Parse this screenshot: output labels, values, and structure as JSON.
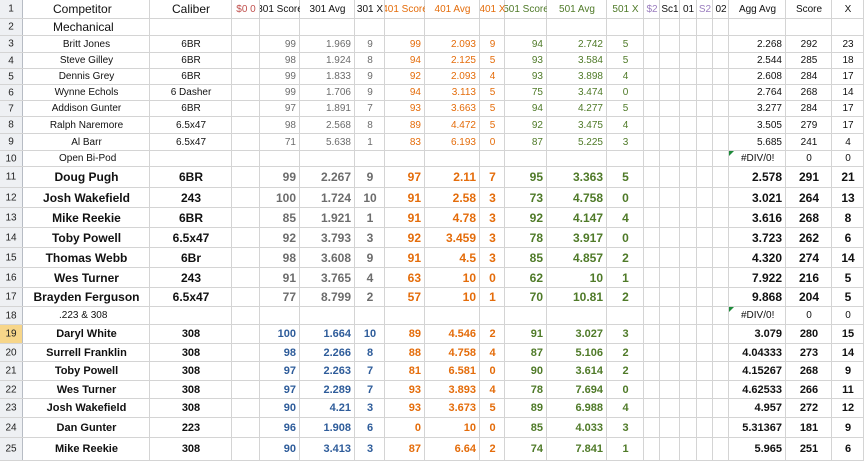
{
  "header": {
    "row_num": "1",
    "cells": [
      "Competitor",
      "Caliber",
      "$0 0",
      "301 Score",
      "301 Avg",
      "301 X",
      "401 Score",
      "401 Avg",
      "401 X",
      "501 Score",
      "501 Avg",
      "501 X",
      "$2",
      "Sc1",
      "01",
      "S2",
      "02",
      "Agg Avg",
      "Score",
      "X"
    ]
  },
  "rows": [
    {
      "num": "2",
      "section": "Mechanical",
      "style": "normal"
    },
    {
      "num": "3",
      "style": "normal",
      "name": "Britt Jones",
      "cal": "6BR",
      "s301": "99",
      "a301": "1.969",
      "x301": "9",
      "s401": "99",
      "a401": "2.093",
      "x401": "9",
      "s501": "94",
      "a501": "2.742",
      "x501": "5",
      "agg": "2.268",
      "score": "292",
      "x": "23"
    },
    {
      "num": "4",
      "style": "normal",
      "name": "Steve Gilley",
      "cal": "6BR",
      "s301": "98",
      "a301": "1.924",
      "x301": "8",
      "s401": "94",
      "a401": "2.125",
      "x401": "5",
      "s501": "93",
      "a501": "3.584",
      "x501": "5",
      "agg": "2.544",
      "score": "285",
      "x": "18"
    },
    {
      "num": "5",
      "style": "normal",
      "name": "Dennis Grey",
      "cal": "6BR",
      "s301": "99",
      "a301": "1.833",
      "x301": "9",
      "s401": "92",
      "a401": "2.093",
      "x401": "4",
      "s501": "93",
      "a501": "3.898",
      "x501": "4",
      "agg": "2.608",
      "score": "284",
      "x": "17"
    },
    {
      "num": "6",
      "style": "normal",
      "name": "Wynne Echols",
      "cal": "6 Dasher",
      "s301": "99",
      "a301": "1.706",
      "x301": "9",
      "s401": "94",
      "a401": "3.113",
      "x401": "5",
      "s501": "75",
      "a501": "3.474",
      "x501": "0",
      "agg": "2.764",
      "score": "268",
      "x": "14"
    },
    {
      "num": "7",
      "style": "normal",
      "name": "Addison Gunter",
      "cal": "6BR",
      "s301": "97",
      "a301": "1.891",
      "x301": "7",
      "s401": "93",
      "a401": "3.663",
      "x401": "5",
      "s501": "94",
      "a501": "4.277",
      "x501": "5",
      "agg": "3.277",
      "score": "284",
      "x": "17"
    },
    {
      "num": "8",
      "style": "normal",
      "name": "Ralph Naremore",
      "cal": "6.5x47",
      "s301": "98",
      "a301": "2.568",
      "x301": "8",
      "s401": "89",
      "a401": "4.472",
      "x401": "5",
      "s501": "92",
      "a501": "3.475",
      "x501": "4",
      "agg": "3.505",
      "score": "279",
      "x": "17"
    },
    {
      "num": "9",
      "style": "normal",
      "name": "Al Barr",
      "cal": "6.5x47",
      "s301": "71",
      "a301": "5.638",
      "x301": "1",
      "s401": "83",
      "a401": "6.193",
      "x401": "0",
      "s501": "87",
      "a501": "5.225",
      "x501": "3",
      "agg": "5.685",
      "score": "241",
      "x": "4"
    },
    {
      "num": "10",
      "section": "Open Bi-Pod",
      "style": "normal",
      "agg": "#DIV/0!",
      "score": "0",
      "x": "0",
      "flag": true
    },
    {
      "num": "11",
      "style": "big",
      "name": "Doug Pugh",
      "cal": "6BR",
      "s301": "99",
      "a301": "2.267",
      "x301": "9",
      "s401": "97",
      "a401": "2.11",
      "x401": "7",
      "s501": "95",
      "a501": "3.363",
      "x501": "5",
      "agg": "2.578",
      "score": "291",
      "x": "21"
    },
    {
      "num": "12",
      "style": "big",
      "name": "Josh Wakefield",
      "cal": "243",
      "s301": "100",
      "a301": "1.724",
      "x301": "10",
      "s401": "91",
      "a401": "2.58",
      "x401": "3",
      "s501": "73",
      "a501": "4.758",
      "x501": "0",
      "agg": "3.021",
      "score": "264",
      "x": "13"
    },
    {
      "num": "13",
      "style": "big",
      "name": "Mike Reekie",
      "cal": "6BR",
      "s301": "85",
      "a301": "1.921",
      "x301": "1",
      "s401": "91",
      "a401": "4.78",
      "x401": "3",
      "s501": "92",
      "a501": "4.147",
      "x501": "4",
      "agg": "3.616",
      "score": "268",
      "x": "8"
    },
    {
      "num": "14",
      "style": "big",
      "name": "Toby Powell",
      "cal": "6.5x47",
      "s301": "92",
      "a301": "3.793",
      "x301": "3",
      "s401": "92",
      "a401": "3.459",
      "x401": "3",
      "s501": "78",
      "a501": "3.917",
      "x501": "0",
      "agg": "3.723",
      "score": "262",
      "x": "6"
    },
    {
      "num": "15",
      "style": "big",
      "name": "Thomas Webb",
      "cal": "6Br",
      "s301": "98",
      "a301": "3.608",
      "x301": "9",
      "s401": "91",
      "a401": "4.5",
      "x401": "3",
      "s501": "85",
      "a501": "4.857",
      "x501": "2",
      "agg": "4.320",
      "score": "274",
      "x": "14"
    },
    {
      "num": "16",
      "style": "big",
      "name": "Wes Turner",
      "cal": "243",
      "s301": "91",
      "a301": "3.765",
      "x301": "4",
      "s401": "63",
      "a401": "10",
      "x401": "0",
      "s501": "62",
      "a501": "10",
      "x501": "1",
      "agg": "7.922",
      "score": "216",
      "x": "5"
    },
    {
      "num": "17",
      "style": "big",
      "name": "Brayden Ferguson",
      "cal": "6.5x47",
      "s301": "77",
      "a301": "8.799",
      "x301": "2",
      "s401": "57",
      "a401": "10",
      "x401": "1",
      "s501": "70",
      "a501": "10.81",
      "x501": "2",
      "agg": "9.868",
      "score": "204",
      "x": "5"
    },
    {
      "num": "18",
      "section": ".223 & 308",
      "style": "normal",
      "agg": "#DIV/0!",
      "score": "0",
      "x": "0",
      "flag": true
    },
    {
      "num": "19",
      "style": "med",
      "sel": true,
      "name": "Daryl White",
      "cal": "308",
      "s301": "100",
      "a301": "1.664",
      "x301": "10",
      "s401": "89",
      "a401": "4.546",
      "x401": "2",
      "s501": "91",
      "a501": "3.027",
      "x501": "3",
      "agg": "3.079",
      "score": "280",
      "x": "15"
    },
    {
      "num": "20",
      "style": "med",
      "name": "Surrell Franklin",
      "cal": "308",
      "s301": "98",
      "a301": "2.266",
      "x301": "8",
      "s401": "88",
      "a401": "4.758",
      "x401": "4",
      "s501": "87",
      "a501": "5.106",
      "x501": "2",
      "agg": "4.04333",
      "score": "273",
      "x": "14"
    },
    {
      "num": "21",
      "style": "med",
      "name": "Toby Powell",
      "cal": "308",
      "s301": "97",
      "a301": "2.263",
      "x301": "7",
      "s401": "81",
      "a401": "6.581",
      "x401": "0",
      "s501": "90",
      "a501": "3.614",
      "x501": "2",
      "agg": "4.15267",
      "score": "268",
      "x": "9"
    },
    {
      "num": "22",
      "style": "med",
      "name": "Wes Turner",
      "cal": "308",
      "s301": "97",
      "a301": "2.289",
      "x301": "7",
      "s401": "93",
      "a401": "3.893",
      "x401": "4",
      "s501": "78",
      "a501": "7.694",
      "x501": "0",
      "agg": "4.62533",
      "score": "266",
      "x": "11"
    },
    {
      "num": "23",
      "style": "med",
      "name": "Josh Wakefield",
      "cal": "308",
      "s301": "90",
      "a301": "4.21",
      "x301": "3",
      "s401": "93",
      "a401": "3.673",
      "x401": "5",
      "s501": "89",
      "a501": "6.988",
      "x501": "4",
      "agg": "4.957",
      "score": "272",
      "x": "12"
    },
    {
      "num": "24",
      "style": "med",
      "name": "Dan Gunter",
      "cal": "223",
      "s301": "96",
      "a301": "1.908",
      "x301": "6",
      "s401": "0",
      "a401": "10",
      "x401": "0",
      "s501": "85",
      "a501": "4.033",
      "x501": "3",
      "agg": "5.31367",
      "score": "181",
      "x": "9"
    },
    {
      "num": "25",
      "style": "med",
      "name": "Mike Reekie",
      "cal": "308",
      "s301": "90",
      "a301": "3.413",
      "x301": "3",
      "s401": "87",
      "a401": "6.64",
      "x401": "2",
      "s501": "74",
      "a501": "7.841",
      "x501": "1",
      "agg": "5.965",
      "score": "251",
      "x": "6"
    }
  ]
}
